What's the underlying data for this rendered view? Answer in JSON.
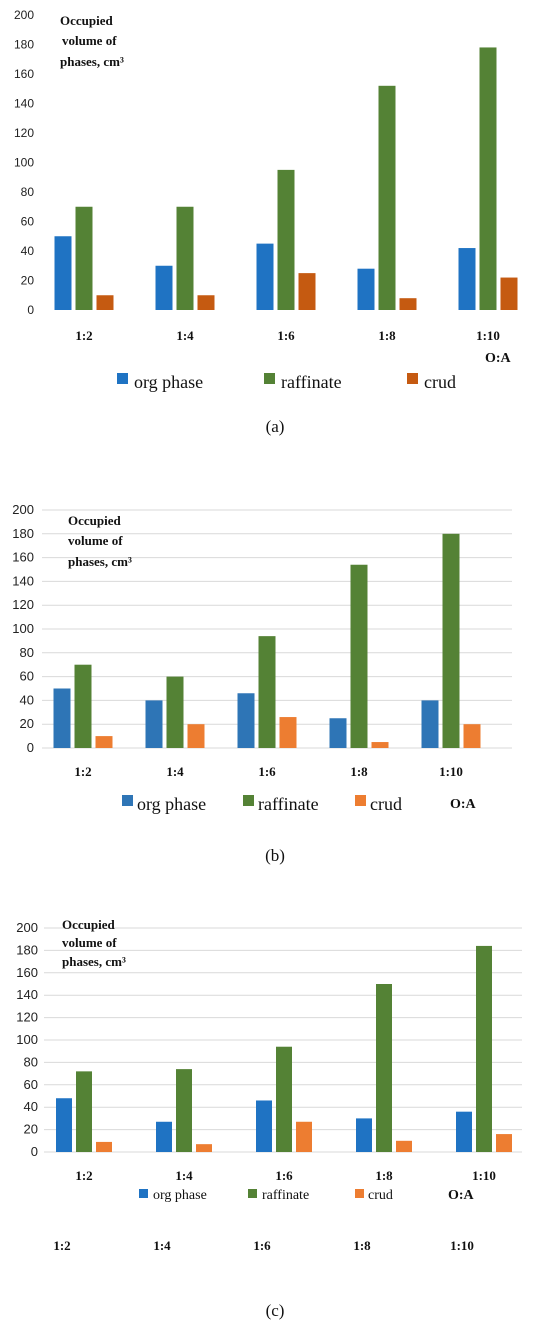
{
  "chart_data": [
    {
      "type": "bar",
      "panel": "a",
      "caption": "(a)",
      "ylabel": [
        "Occupied",
        "volume of",
        "phases, cm³"
      ],
      "xlabel": "O:A",
      "categories": [
        "1:2",
        "1:4",
        "1:6",
        "1:8",
        "1:10"
      ],
      "ylim": [
        0,
        200
      ],
      "yticks": [
        0,
        20,
        40,
        60,
        80,
        100,
        120,
        140,
        160,
        180,
        200
      ],
      "grid": false,
      "legend_position": "bottom",
      "series": [
        {
          "name": "org phase",
          "color": "#1f73c3",
          "values": [
            50,
            30,
            45,
            28,
            42
          ]
        },
        {
          "name": "raffinate",
          "color": "#548235",
          "values": [
            70,
            70,
            95,
            152,
            178
          ]
        },
        {
          "name": "crud",
          "color": "#c55a11",
          "values": [
            10,
            10,
            25,
            8,
            22
          ]
        }
      ]
    },
    {
      "type": "bar",
      "panel": "b",
      "caption": "(b)",
      "ylabel": [
        "Occupied",
        "volume of",
        "phases, cm³"
      ],
      "xlabel": "O:A",
      "categories": [
        "1:2",
        "1:4",
        "1:6",
        "1:8",
        "1:10"
      ],
      "ylim": [
        0,
        200
      ],
      "yticks": [
        0,
        20,
        40,
        60,
        80,
        100,
        120,
        140,
        160,
        180,
        200
      ],
      "grid": true,
      "legend_position": "bottom",
      "series": [
        {
          "name": "org phase",
          "color": "#2e75b6",
          "values": [
            50,
            40,
            46,
            25,
            40
          ]
        },
        {
          "name": "raffinate",
          "color": "#548235",
          "values": [
            70,
            60,
            94,
            154,
            180
          ]
        },
        {
          "name": "crud",
          "color": "#ed7d31",
          "values": [
            10,
            20,
            26,
            5,
            20
          ]
        }
      ]
    },
    {
      "type": "bar",
      "panel": "c",
      "caption": "(c)",
      "ylabel": [
        "Occupied",
        "volume of",
        "phases, cm³"
      ],
      "xlabel": "O:A",
      "categories": [
        "1:2",
        "1:4",
        "1:6",
        "1:8",
        "1:10"
      ],
      "extra_row_labels": [
        "1:2",
        "1:4",
        "1:6",
        "1:8",
        "1:10"
      ],
      "ylim": [
        0,
        200
      ],
      "yticks": [
        0,
        20,
        40,
        60,
        80,
        100,
        120,
        140,
        160,
        180,
        200
      ],
      "grid": true,
      "legend_position": "bottom",
      "series": [
        {
          "name": "org phase",
          "color": "#1f73c3",
          "values": [
            48,
            27,
            46,
            30,
            36
          ]
        },
        {
          "name": "raffinate",
          "color": "#548235",
          "values": [
            72,
            74,
            94,
            150,
            184
          ]
        },
        {
          "name": "crud",
          "color": "#ed7d31",
          "values": [
            9,
            7,
            27,
            10,
            16
          ]
        }
      ]
    }
  ]
}
